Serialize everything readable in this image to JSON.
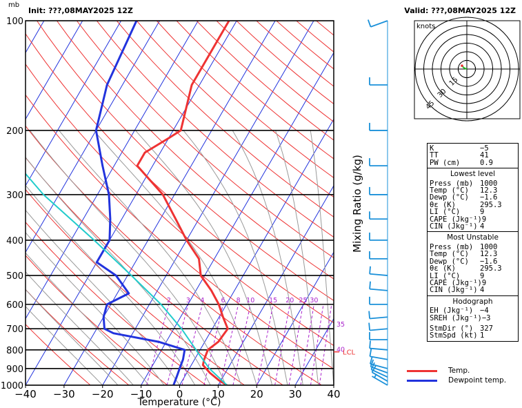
{
  "header": {
    "pressure_unit": "mb",
    "init": "Init: ???,08MAY2025  12Z",
    "valid": "Valid: ???,08MAY2025  12Z"
  },
  "hodograph": {
    "units_label": "knots",
    "ring_labels": [
      "15",
      "30",
      "45"
    ],
    "trace": [
      [
        0,
        0
      ],
      [
        1.6,
        0.6
      ],
      [
        2.4,
        1.3
      ],
      [
        3.0,
        1.8
      ],
      [
        3.2,
        2.2
      ]
    ]
  },
  "colors": {
    "temp": "#ee3333",
    "dewpoint": "#2233dd",
    "parcel": "#22cccc",
    "isotherm": "#2233dd",
    "dry_adiabat": "#ee3333",
    "moist_adiabat": "#999999",
    "mixing_ratio": "#aa22cc",
    "wind_barb": "#1a90d9",
    "lcl": "#ee3333"
  },
  "chart_data": {
    "type": "line",
    "title": "",
    "xlabel": "Temperature (°C)",
    "ylabel": "",
    "x_ticks": [
      "−40",
      "−30",
      "−20",
      "−10",
      "0",
      "10",
      "20",
      "30",
      "40"
    ],
    "x_tick_values": [
      -40,
      -30,
      -20,
      -10,
      0,
      10,
      20,
      30,
      40
    ],
    "y_ticks": [
      "100",
      "200",
      "300",
      "400",
      "500",
      "600",
      "700",
      "800",
      "900",
      "1000"
    ],
    "y_tick_values": [
      100,
      200,
      300,
      400,
      500,
      600,
      700,
      800,
      900,
      1000
    ],
    "xlim": [
      -40,
      40
    ],
    "ylim": [
      1000,
      100
    ],
    "y_scale": "log",
    "right_axis_label": "Mixing Ratio (g/kg)",
    "mixing_ratio_labels": [
      "2",
      "3",
      "4",
      "6",
      "8",
      "10",
      "15",
      "20",
      "25",
      "30",
      "35",
      "40"
    ],
    "mixing_ratio_values": [
      2,
      3,
      4,
      6,
      8,
      10,
      15,
      20,
      25,
      30,
      35,
      40
    ],
    "lcl_label": "LCL",
    "lcl_pressure": 810,
    "series": [
      {
        "name": "Temp.",
        "points": [
          [
            1000,
            12.3
          ],
          [
            970,
            9.5
          ],
          [
            925,
            6
          ],
          [
            880,
            3
          ],
          [
            850,
            2.5
          ],
          [
            800,
            2
          ],
          [
            760,
            3.5
          ],
          [
            700,
            4
          ],
          [
            650,
            1
          ],
          [
            600,
            -2
          ],
          [
            550,
            -6
          ],
          [
            500,
            -11
          ],
          [
            450,
            -14
          ],
          [
            400,
            -20
          ],
          [
            350,
            -26
          ],
          [
            300,
            -33
          ],
          [
            250,
            -44
          ],
          [
            230,
            -44
          ],
          [
            210,
            -40
          ],
          [
            200,
            -38
          ],
          [
            150,
            -42
          ],
          [
            100,
            -42
          ]
        ]
      },
      {
        "name": "Dewpoint temp.",
        "points": [
          [
            1000,
            -1.6
          ],
          [
            950,
            -2
          ],
          [
            900,
            -2.5
          ],
          [
            850,
            -3
          ],
          [
            800,
            -4
          ],
          [
            760,
            -12
          ],
          [
            720,
            -25
          ],
          [
            700,
            -28
          ],
          [
            650,
            -30
          ],
          [
            600,
            -31
          ],
          [
            560,
            -27
          ],
          [
            500,
            -33
          ],
          [
            460,
            -40
          ],
          [
            400,
            -40
          ],
          [
            350,
            -43
          ],
          [
            300,
            -47
          ],
          [
            250,
            -53
          ],
          [
            200,
            -60
          ],
          [
            150,
            -64
          ],
          [
            100,
            -66
          ]
        ]
      },
      {
        "points": [
          [
            1000,
            12.3
          ],
          [
            900,
            5.2
          ],
          [
            810,
            -0.4
          ],
          [
            700,
            -8
          ],
          [
            600,
            -17
          ],
          [
            500,
            -29
          ],
          [
            400,
            -44
          ],
          [
            300,
            -64
          ],
          [
            200,
            -88
          ],
          [
            172,
            -95
          ]
        ]
      }
    ],
    "wind_barbs": [
      {
        "p": 1000,
        "speed_kt": 5,
        "dir_deg": 300
      },
      {
        "p": 975,
        "speed_kt": 10,
        "dir_deg": 300
      },
      {
        "p": 950,
        "speed_kt": 10,
        "dir_deg": 295
      },
      {
        "p": 925,
        "speed_kt": 10,
        "dir_deg": 290
      },
      {
        "p": 900,
        "speed_kt": 10,
        "dir_deg": 285
      },
      {
        "p": 850,
        "speed_kt": 10,
        "dir_deg": 280
      },
      {
        "p": 800,
        "speed_kt": 10,
        "dir_deg": 275
      },
      {
        "p": 750,
        "speed_kt": 10,
        "dir_deg": 270
      },
      {
        "p": 700,
        "speed_kt": 10,
        "dir_deg": 265
      },
      {
        "p": 650,
        "speed_kt": 10,
        "dir_deg": 265
      },
      {
        "p": 600,
        "speed_kt": 10,
        "dir_deg": 270
      },
      {
        "p": 550,
        "speed_kt": 10,
        "dir_deg": 275
      },
      {
        "p": 500,
        "speed_kt": 10,
        "dir_deg": 275
      },
      {
        "p": 450,
        "speed_kt": 10,
        "dir_deg": 270
      },
      {
        "p": 400,
        "speed_kt": 10,
        "dir_deg": 270
      },
      {
        "p": 350,
        "speed_kt": 10,
        "dir_deg": 270
      },
      {
        "p": 300,
        "speed_kt": 10,
        "dir_deg": 270
      },
      {
        "p": 250,
        "speed_kt": 10,
        "dir_deg": 270
      },
      {
        "p": 200,
        "speed_kt": 10,
        "dir_deg": 270
      },
      {
        "p": 150,
        "speed_kt": 10,
        "dir_deg": 270
      },
      {
        "p": 100,
        "speed_kt": 10,
        "dir_deg": 250
      }
    ]
  },
  "indices": {
    "top": [
      {
        "label": "K",
        "value": "−5"
      },
      {
        "label": "TT",
        "value": "41"
      },
      {
        "label": "PW (cm)",
        "value": "0.9"
      }
    ],
    "lowest_title": "Lowest level",
    "lowest": [
      {
        "label": "Press (mb)",
        "value": "1000"
      },
      {
        "label": "Temp (°C)",
        "value": "12.3"
      },
      {
        "label": "Dewp (°C)",
        "value": "−1.6"
      },
      {
        "label": "θε (K)",
        "value": "295.3"
      },
      {
        "label": "LI (°C)",
        "value": "9"
      },
      {
        "label": "CAPE (Jkg⁻¹)",
        "value": "9"
      },
      {
        "label": "CIN (Jkg⁻¹)",
        "value": "4"
      }
    ],
    "unstable_title": "Most Unstable",
    "unstable": [
      {
        "label": "Press (mb)",
        "value": "1000"
      },
      {
        "label": "Temp (°C)",
        "value": "12.3"
      },
      {
        "label": "Dewp (°C)",
        "value": "−1.6"
      },
      {
        "label": "θε (K)",
        "value": "295.3"
      },
      {
        "label": "LI (°C)",
        "value": "9"
      },
      {
        "label": "CAPE (Jkg⁻¹)",
        "value": "9"
      },
      {
        "label": "CIN (Jkg⁻¹)",
        "value": "4"
      }
    ],
    "hodo_title": "Hodograph",
    "hodo": [
      {
        "label": "EH (Jkg⁻¹)",
        "value": "−4"
      },
      {
        "label": "SREH (Jkg⁻¹)",
        "value": "−3"
      }
    ],
    "storm": [
      {
        "label": "StmDir (°)",
        "value": "327"
      },
      {
        "label": "StmSpd (kt)",
        "value": "1"
      }
    ]
  },
  "legend": [
    {
      "label": "Temp.",
      "color": "#ee3333"
    },
    {
      "label": "Dewpoint temp.",
      "color": "#2233dd"
    }
  ]
}
